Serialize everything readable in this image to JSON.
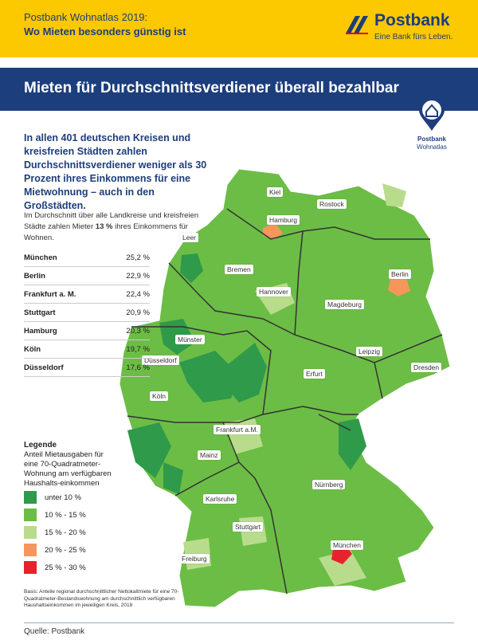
{
  "header": {
    "title_line1": "Postbank Wohnatlas 2019:",
    "title_line2": "Wo Mieten besonders günstig ist",
    "logo_name": "Postbank",
    "logo_tagline": "Eine Bank fürs Leben."
  },
  "banner": "Mieten für Durchschnittsverdiener überall bezahlbar",
  "badge": {
    "name": "Postbank",
    "sub": "Wohnatlas"
  },
  "intro": "In allen 401 deutschen Kreisen und kreisfreien Städten zahlen Durchschnittsverdiener weniger als 30 Prozent ihres Einkommens für eine Mietwohnung – auch in den Großstädten.",
  "summary": {
    "before": "Im Durchschnitt über alle Landkreise und kreisfreien Städte zahlen Mieter",
    "highlight": "13 %",
    "after": "ihres Einkommens für Wohnen."
  },
  "table": {
    "rows": [
      [
        "München",
        "25,2 %"
      ],
      [
        "Berlin",
        "22,9 %"
      ],
      [
        "Frankfurt a. M.",
        "22,4 %"
      ],
      [
        "Stuttgart",
        "20,9 %"
      ],
      [
        "Hamburg",
        "20,3 %"
      ],
      [
        "Köln",
        "19,7 %"
      ],
      [
        "Düsseldorf",
        "17,6 %"
      ]
    ]
  },
  "legend": {
    "title": "Legende",
    "description": "Anteil Mietausgaben für eine 70-Quadratmeter-Wohnung am verfügbaren Haushalts-einkommen",
    "items": [
      {
        "label": "unter 10 %",
        "color": "#2e9a4a"
      },
      {
        "label": "10 % - 15 %",
        "color": "#6cbd45"
      },
      {
        "label": "15 % - 20 %",
        "color": "#b8dc8c"
      },
      {
        "label": "20 % - 25 %",
        "color": "#f7965a"
      },
      {
        "label": "25 % - 30 %",
        "color": "#e8222d"
      }
    ]
  },
  "basis": "Basis: Anteile regional durchschnittlicher Nettokaltmiete für eine 70-Quadratmeter-Bestandswohnung am durchschnittlich verfügbaren Haushaltseinkommen im jeweiligen Kreis, 2018",
  "source": "Quelle: Postbank",
  "map": {
    "cities": [
      "Kiel",
      "Hamburg",
      "Rostock",
      "Leer",
      "Bremen",
      "Berlin",
      "Hannover",
      "Magdeburg",
      "Münster",
      "Düsseldorf",
      "Leipzig",
      "Dresden",
      "Erfurt",
      "Köln",
      "Frankfurt a.M.",
      "Mainz",
      "Nürnberg",
      "Karlsruhe",
      "Stuttgart",
      "München",
      "Freiburg"
    ]
  }
}
